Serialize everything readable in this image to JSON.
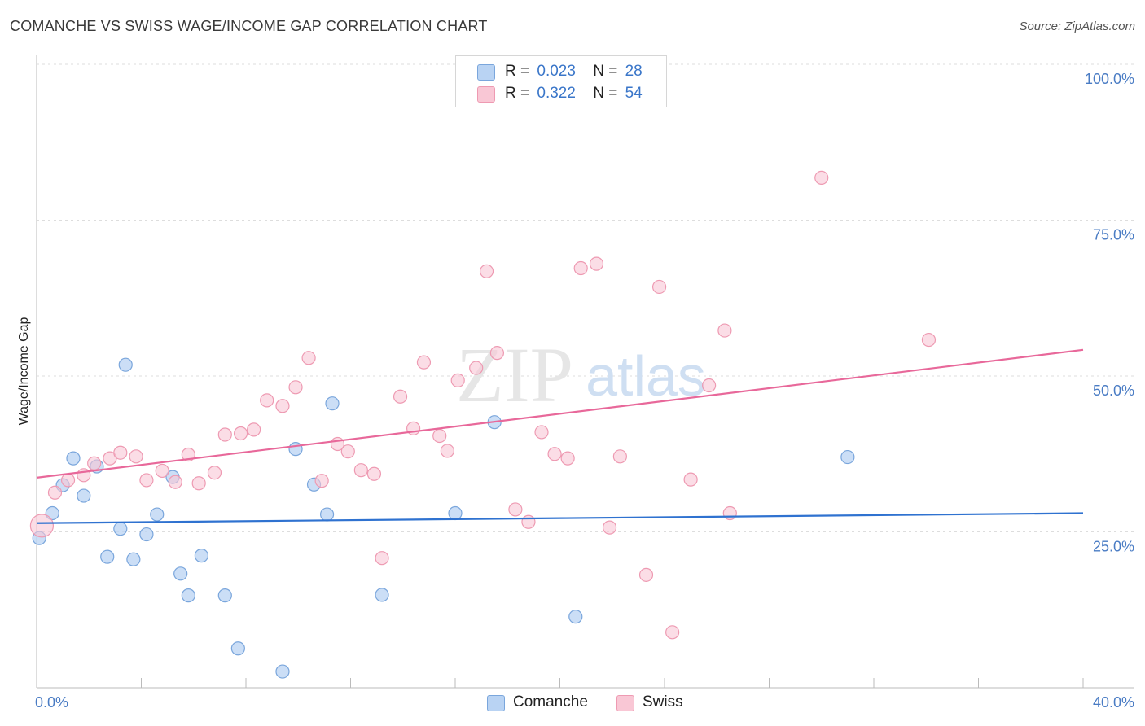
{
  "header": {
    "title": "COMANCHE VS SWISS WAGE/INCOME GAP CORRELATION CHART",
    "source": "Source: ZipAtlas.com"
  },
  "legend": {
    "rows": [
      {
        "r_label": "R =",
        "r_value": "0.023",
        "n_label": "N =",
        "n_value": "28"
      },
      {
        "r_label": "R =",
        "r_value": "0.322",
        "n_label": "N =",
        "n_value": "54"
      }
    ]
  },
  "bottom_legend": [
    {
      "label": "Comanche"
    },
    {
      "label": "Swiss"
    }
  ],
  "watermark": {
    "zip": "ZIP",
    "atlas": "atlas"
  },
  "colors": {
    "comanche_fill": "#b9d3f3",
    "comanche_stroke": "#7aa6dc",
    "comanche_line": "#2f72d0",
    "swiss_fill": "#f9c7d5",
    "swiss_stroke": "#ee9ab2",
    "swiss_line": "#e8689a",
    "tick_text": "#4a7cc4",
    "grid": "#dddddd"
  },
  "chart_data": {
    "type": "scatter",
    "title": "COMANCHE VS SWISS WAGE/INCOME GAP CORRELATION CHART",
    "xlabel": "",
    "ylabel": "Wage/Income Gap",
    "xlim": [
      0,
      40
    ],
    "ylim": [
      0,
      100
    ],
    "x_tick_labels": [
      "0.0%",
      "40.0%"
    ],
    "y_ticks": [
      25,
      50,
      75,
      100
    ],
    "y_tick_labels": [
      "25.0%",
      "50.0%",
      "75.0%",
      "100.0%"
    ],
    "grid": true,
    "series": [
      {
        "name": "Comanche",
        "R": 0.023,
        "N": 28,
        "trend": {
          "x": [
            0,
            40
          ],
          "y": [
            26.4,
            28.0
          ]
        },
        "points": [
          {
            "x": 0.1,
            "y": 24.0
          },
          {
            "x": 0.6,
            "y": 28.0
          },
          {
            "x": 1.0,
            "y": 32.5
          },
          {
            "x": 1.4,
            "y": 36.8
          },
          {
            "x": 1.8,
            "y": 30.8
          },
          {
            "x": 2.3,
            "y": 35.5
          },
          {
            "x": 2.7,
            "y": 21.0
          },
          {
            "x": 3.2,
            "y": 25.5
          },
          {
            "x": 3.4,
            "y": 51.8
          },
          {
            "x": 3.7,
            "y": 20.6
          },
          {
            "x": 4.2,
            "y": 24.6
          },
          {
            "x": 4.6,
            "y": 27.8
          },
          {
            "x": 5.2,
            "y": 33.8
          },
          {
            "x": 5.5,
            "y": 18.3
          },
          {
            "x": 5.8,
            "y": 14.8
          },
          {
            "x": 6.3,
            "y": 21.2
          },
          {
            "x": 7.2,
            "y": 14.8
          },
          {
            "x": 7.7,
            "y": 6.3
          },
          {
            "x": 9.4,
            "y": 2.6
          },
          {
            "x": 9.9,
            "y": 38.3
          },
          {
            "x": 10.6,
            "y": 32.6
          },
          {
            "x": 11.1,
            "y": 27.8
          },
          {
            "x": 11.3,
            "y": 45.6
          },
          {
            "x": 13.2,
            "y": 14.9
          },
          {
            "x": 16.0,
            "y": 28.0
          },
          {
            "x": 17.5,
            "y": 42.6
          },
          {
            "x": 20.6,
            "y": 11.4
          },
          {
            "x": 31.0,
            "y": 37.0
          }
        ]
      },
      {
        "name": "Swiss",
        "R": 0.322,
        "N": 54,
        "trend": {
          "x": [
            0,
            40
          ],
          "y": [
            33.7,
            54.2
          ]
        },
        "points": [
          {
            "x": 0.2,
            "y": 26.0
          },
          {
            "x": 0.7,
            "y": 31.3
          },
          {
            "x": 1.2,
            "y": 33.3
          },
          {
            "x": 1.8,
            "y": 34.1
          },
          {
            "x": 2.2,
            "y": 36.0
          },
          {
            "x": 2.8,
            "y": 36.8
          },
          {
            "x": 3.2,
            "y": 37.7
          },
          {
            "x": 3.8,
            "y": 37.1
          },
          {
            "x": 4.2,
            "y": 33.3
          },
          {
            "x": 4.8,
            "y": 34.8
          },
          {
            "x": 5.3,
            "y": 33.0
          },
          {
            "x": 5.8,
            "y": 37.4
          },
          {
            "x": 6.2,
            "y": 32.8
          },
          {
            "x": 6.8,
            "y": 34.5
          },
          {
            "x": 7.2,
            "y": 40.6
          },
          {
            "x": 7.8,
            "y": 40.8
          },
          {
            "x": 8.3,
            "y": 41.4
          },
          {
            "x": 8.8,
            "y": 46.1
          },
          {
            "x": 9.4,
            "y": 45.2
          },
          {
            "x": 9.9,
            "y": 48.2
          },
          {
            "x": 10.4,
            "y": 52.9
          },
          {
            "x": 10.9,
            "y": 33.2
          },
          {
            "x": 11.5,
            "y": 39.1
          },
          {
            "x": 11.9,
            "y": 37.9
          },
          {
            "x": 12.4,
            "y": 34.9
          },
          {
            "x": 12.9,
            "y": 34.3
          },
          {
            "x": 13.2,
            "y": 20.8
          },
          {
            "x": 13.9,
            "y": 46.7
          },
          {
            "x": 14.4,
            "y": 41.6
          },
          {
            "x": 14.8,
            "y": 52.2
          },
          {
            "x": 15.4,
            "y": 40.4
          },
          {
            "x": 15.7,
            "y": 38.0
          },
          {
            "x": 16.1,
            "y": 49.3
          },
          {
            "x": 16.8,
            "y": 51.3
          },
          {
            "x": 17.2,
            "y": 66.8
          },
          {
            "x": 17.6,
            "y": 53.7
          },
          {
            "x": 18.3,
            "y": 28.6
          },
          {
            "x": 18.8,
            "y": 26.6
          },
          {
            "x": 19.3,
            "y": 41.0
          },
          {
            "x": 19.8,
            "y": 37.5
          },
          {
            "x": 20.3,
            "y": 36.8
          },
          {
            "x": 20.8,
            "y": 67.3
          },
          {
            "x": 21.4,
            "y": 68.0
          },
          {
            "x": 21.9,
            "y": 25.7
          },
          {
            "x": 22.3,
            "y": 37.1
          },
          {
            "x": 23.3,
            "y": 18.1
          },
          {
            "x": 23.8,
            "y": 64.3
          },
          {
            "x": 24.3,
            "y": 8.9
          },
          {
            "x": 25.0,
            "y": 33.4
          },
          {
            "x": 25.7,
            "y": 48.5
          },
          {
            "x": 26.3,
            "y": 57.3
          },
          {
            "x": 26.5,
            "y": 28.0
          },
          {
            "x": 30.0,
            "y": 81.8
          },
          {
            "x": 34.1,
            "y": 55.8
          }
        ]
      }
    ]
  }
}
